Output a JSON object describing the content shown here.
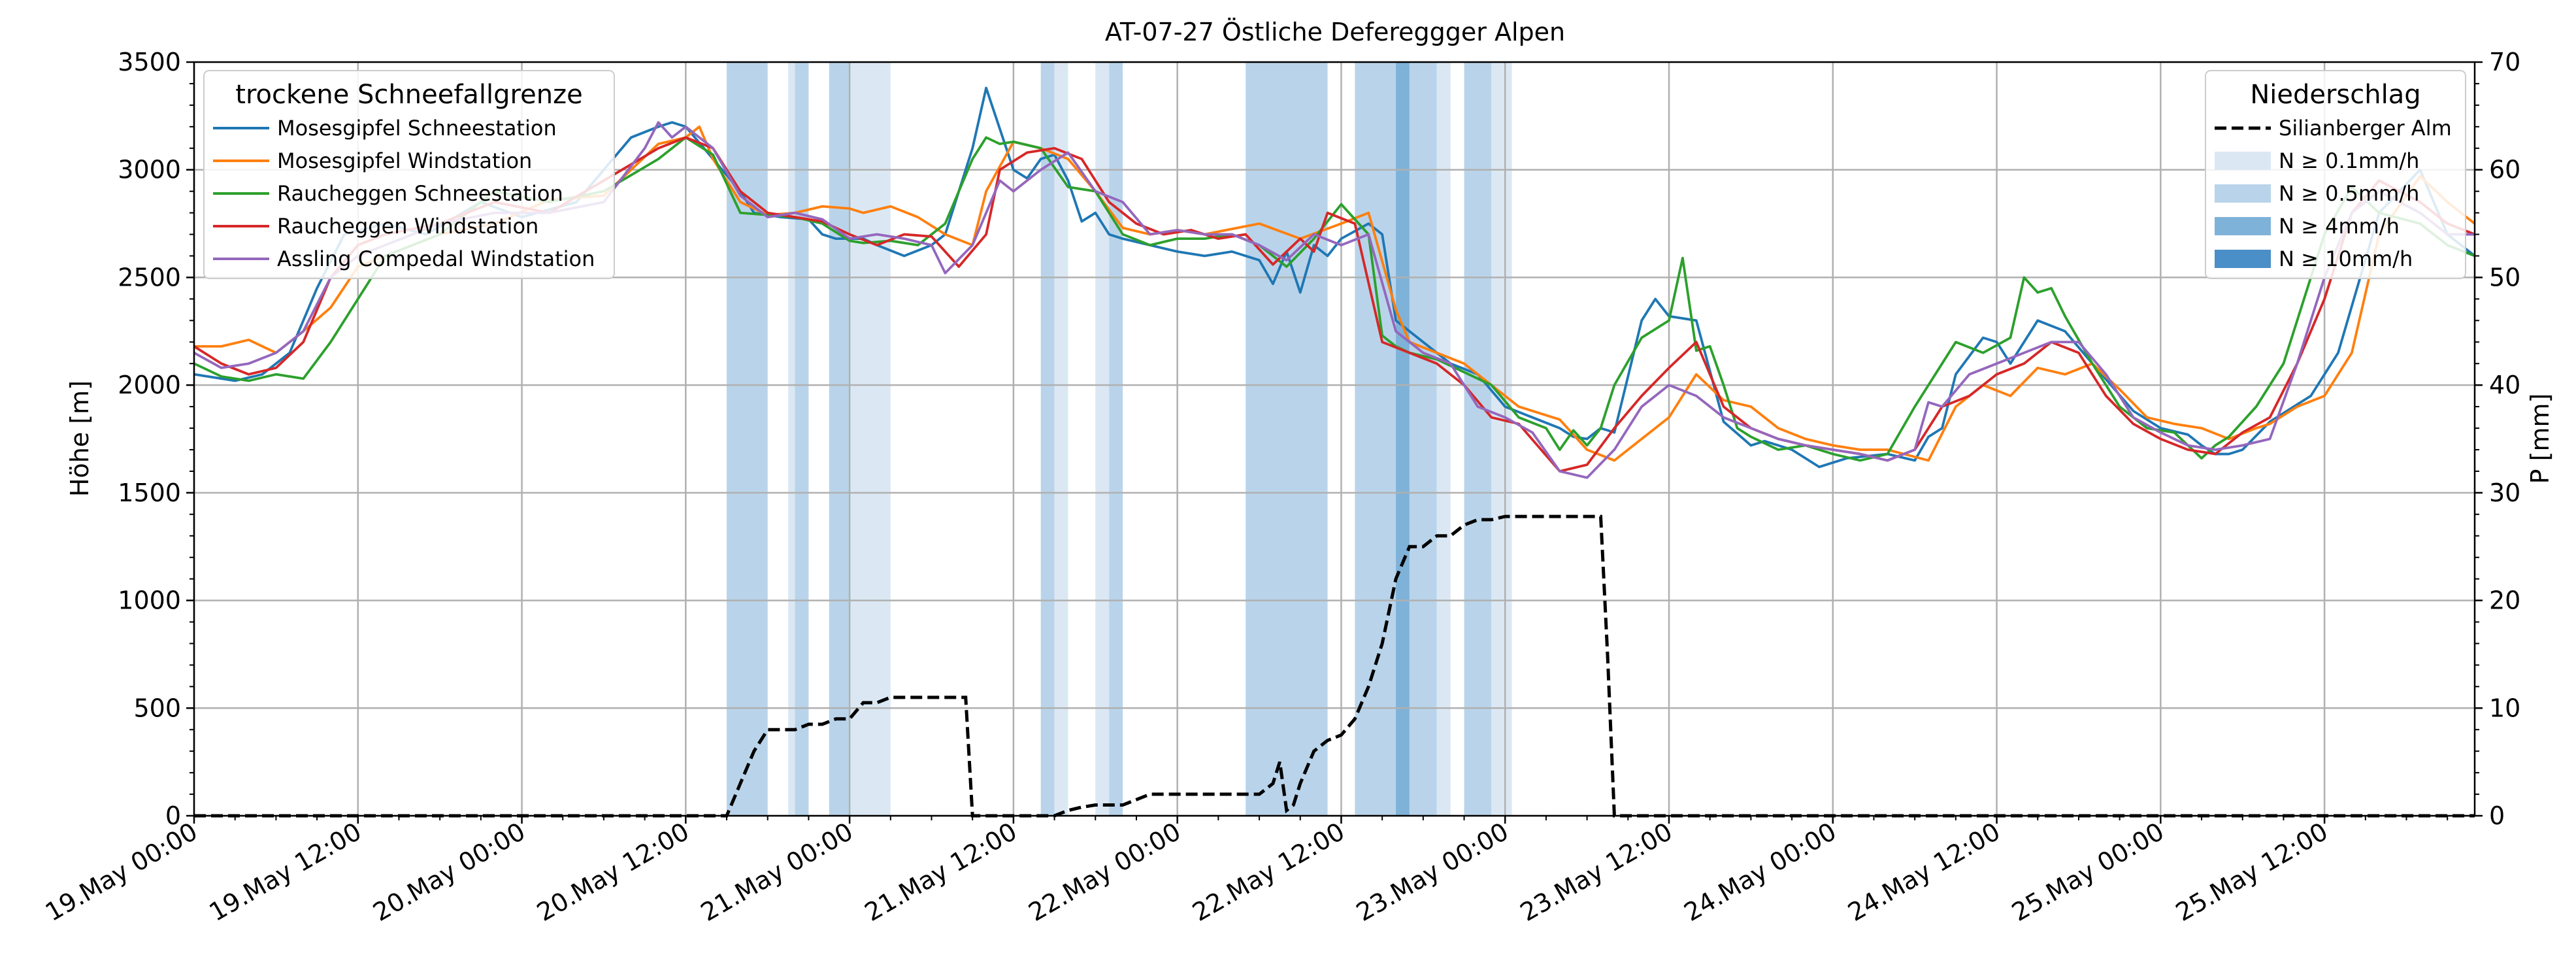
{
  "chart_data": {
    "type": "line",
    "title": "AT-07-27 Östliche Defereggger Alpen",
    "xlabel": "",
    "ylabel_left": "Höhe [m]",
    "ylabel_right": "P [mm]",
    "xlim_hours": [
      0,
      167
    ],
    "ylim_left": [
      0,
      3500
    ],
    "ylim_right": [
      0,
      70
    ],
    "grid": true,
    "y_ticks_left": [
      0,
      500,
      1000,
      1500,
      2000,
      2500,
      3000,
      3500
    ],
    "y_ticks_left_labels": [
      "0",
      "500",
      "1000",
      "1500",
      "2000",
      "2500",
      "3000",
      "3500"
    ],
    "y_ticks_right": [
      0,
      10,
      20,
      30,
      40,
      50,
      60,
      70
    ],
    "y_ticks_right_labels": [
      "0",
      "10",
      "20",
      "30",
      "40",
      "50",
      "60",
      "70"
    ],
    "x_ticks_hours": [
      0,
      12,
      24,
      36,
      48,
      60,
      72,
      84,
      96,
      108,
      120,
      132,
      144,
      156
    ],
    "x_tick_labels": [
      "19.May 00:00",
      "19.May 12:00",
      "20.May 00:00",
      "20.May 12:00",
      "21.May 00:00",
      "21.May 12:00",
      "22.May 00:00",
      "22.May 12:00",
      "23.May 00:00",
      "23.May 12:00",
      "24.May 00:00",
      "24.May 12:00",
      "25.May 00:00",
      "25.May 12:00"
    ],
    "legend_snow": {
      "title": "trockene Schneefallgrenze",
      "placement": "top-left"
    },
    "legend_precip": {
      "title": "Niederschlag",
      "placement": "top-right",
      "line_label": "Silianberger Alm",
      "levels": [
        {
          "label": "N ≥ 0.1mm/h",
          "color": "#dbe8f4"
        },
        {
          "label": "N ≥ 0.5mm/h",
          "color": "#b9d4ea"
        },
        {
          "label": "N ≥ 4mm/h",
          "color": "#7fb2d8"
        },
        {
          "label": "N ≥ 10mm/h",
          "color": "#4a8fc7"
        }
      ]
    },
    "precip_bands": [
      {
        "start": 39,
        "end": 42,
        "level": 1
      },
      {
        "start": 43.5,
        "end": 44,
        "level": 0
      },
      {
        "start": 44,
        "end": 45,
        "level": 1
      },
      {
        "start": 46.5,
        "end": 48,
        "level": 1
      },
      {
        "start": 48,
        "end": 51,
        "level": 0
      },
      {
        "start": 62,
        "end": 63,
        "level": 1
      },
      {
        "start": 63,
        "end": 64,
        "level": 0
      },
      {
        "start": 66,
        "end": 67,
        "level": 0
      },
      {
        "start": 67,
        "end": 68,
        "level": 1
      },
      {
        "start": 77,
        "end": 83,
        "level": 1
      },
      {
        "start": 85,
        "end": 88,
        "level": 1
      },
      {
        "start": 88,
        "end": 89,
        "level": 2
      },
      {
        "start": 89,
        "end": 91,
        "level": 1
      },
      {
        "start": 91,
        "end": 92,
        "level": 0
      },
      {
        "start": 93,
        "end": 95,
        "level": 1
      },
      {
        "start": 95,
        "end": 96.5,
        "level": 0
      }
    ],
    "series": [
      {
        "name": "Mosesgipfel Schneestation",
        "color": "#1f77b4",
        "x": [
          0,
          3,
          5,
          7,
          9,
          11,
          14,
          17,
          21,
          24,
          28,
          32,
          34,
          35,
          36,
          38,
          40,
          41,
          43,
          45,
          46,
          47,
          49,
          50,
          52,
          54,
          55,
          56,
          57,
          58,
          60,
          61,
          62,
          63,
          64,
          65,
          66,
          67,
          68,
          70,
          72,
          74,
          76,
          78,
          79,
          80,
          81,
          82,
          83,
          84,
          86,
          87,
          88,
          89,
          92,
          94,
          96,
          98,
          100,
          101,
          102,
          103,
          104,
          106,
          107,
          108,
          110,
          112,
          114,
          115,
          117,
          119,
          121,
          124,
          126,
          127,
          128,
          129,
          131,
          132,
          133,
          135,
          137,
          139,
          142,
          144,
          146,
          147,
          148,
          149,
          150,
          152,
          155,
          157,
          160,
          163,
          165,
          167
        ],
        "values": [
          2050,
          2020,
          2050,
          2150,
          2450,
          2700,
          2750,
          2700,
          2850,
          2780,
          2850,
          3150,
          3200,
          3220,
          3200,
          3050,
          2900,
          2800,
          2780,
          2770,
          2700,
          2680,
          2680,
          2650,
          2600,
          2650,
          2700,
          2900,
          3100,
          3380,
          3000,
          2960,
          3050,
          3070,
          2950,
          2760,
          2800,
          2700,
          2680,
          2650,
          2620,
          2600,
          2620,
          2580,
          2470,
          2620,
          2430,
          2650,
          2600,
          2680,
          2750,
          2700,
          2300,
          2250,
          2100,
          2050,
          1900,
          1850,
          1800,
          1760,
          1750,
          1800,
          1780,
          2300,
          2400,
          2320,
          2300,
          1830,
          1720,
          1740,
          1700,
          1620,
          1660,
          1680,
          1650,
          1760,
          1800,
          2050,
          2220,
          2200,
          2100,
          2300,
          2250,
          2100,
          1880,
          1800,
          1770,
          1720,
          1680,
          1680,
          1700,
          1830,
          1950,
          2150,
          2800,
          3000,
          2700,
          2600
        ]
      },
      {
        "name": "Mosesgipfel Windstation",
        "color": "#ff7f0e",
        "x": [
          0,
          2,
          4,
          6,
          8,
          10,
          12,
          14,
          18,
          22,
          26,
          30,
          34,
          36,
          37,
          38,
          40,
          42,
          44,
          46,
          48,
          49,
          51,
          53,
          55,
          57,
          58,
          60,
          62,
          64,
          66,
          68,
          70,
          72,
          74,
          78,
          81,
          84,
          86,
          88,
          89,
          91,
          93,
          95,
          97,
          100,
          102,
          104,
          106,
          108,
          110,
          112,
          114,
          116,
          118,
          120,
          122,
          124,
          127,
          129,
          131,
          133,
          135,
          137,
          139,
          141,
          143,
          145,
          147,
          149,
          151,
          152,
          154,
          156,
          158,
          160,
          163,
          165,
          167
        ],
        "values": [
          2180,
          2180,
          2210,
          2150,
          2250,
          2360,
          2550,
          2600,
          2700,
          2750,
          2860,
          2880,
          3120,
          3150,
          3200,
          3050,
          2850,
          2790,
          2800,
          2830,
          2820,
          2800,
          2830,
          2780,
          2700,
          2650,
          2900,
          3130,
          3100,
          3050,
          2900,
          2730,
          2700,
          2720,
          2700,
          2750,
          2680,
          2750,
          2800,
          2350,
          2200,
          2150,
          2100,
          2000,
          1900,
          1840,
          1700,
          1650,
          1750,
          1850,
          2050,
          1930,
          1900,
          1800,
          1750,
          1720,
          1700,
          1700,
          1650,
          1900,
          2000,
          1950,
          2080,
          2050,
          2100,
          1980,
          1850,
          1820,
          1800,
          1750,
          1800,
          1820,
          1900,
          1950,
          2150,
          2700,
          2970,
          2850,
          2750
        ]
      },
      {
        "name": "Raucheggen Schneestation",
        "color": "#2ca02c",
        "x": [
          0,
          2,
          4,
          6,
          8,
          10,
          12,
          14,
          18,
          22,
          26,
          30,
          34,
          36,
          38,
          40,
          42,
          44,
          46,
          48,
          49,
          51,
          53,
          55,
          57,
          58,
          59,
          60,
          62,
          64,
          66,
          68,
          70,
          72,
          74,
          76,
          78,
          80,
          82,
          84,
          86,
          87,
          88,
          89,
          91,
          93,
          95,
          97,
          99,
          100,
          101,
          102,
          103,
          104,
          106,
          108,
          109,
          110,
          111,
          112,
          113,
          114,
          116,
          118,
          120,
          122,
          124,
          126,
          128,
          129,
          131,
          133,
          134,
          135,
          136,
          137,
          139,
          141,
          143,
          145,
          146,
          147,
          148,
          149,
          151,
          153,
          155,
          156,
          158,
          160,
          163,
          165,
          167
        ],
        "values": [
          2100,
          2040,
          2020,
          2050,
          2030,
          2200,
          2400,
          2600,
          2700,
          2900,
          2850,
          2900,
          3050,
          3150,
          3070,
          2800,
          2790,
          2780,
          2750,
          2670,
          2660,
          2670,
          2650,
          2750,
          3050,
          3150,
          3120,
          3130,
          3100,
          2920,
          2900,
          2700,
          2650,
          2680,
          2680,
          2700,
          2650,
          2550,
          2680,
          2840,
          2700,
          2230,
          2180,
          2150,
          2120,
          2060,
          2000,
          1850,
          1800,
          1700,
          1790,
          1720,
          1800,
          2000,
          2220,
          2300,
          2590,
          2160,
          2180,
          2000,
          1800,
          1760,
          1700,
          1720,
          1680,
          1650,
          1680,
          1900,
          2100,
          2200,
          2150,
          2220,
          2500,
          2430,
          2450,
          2320,
          2100,
          1900,
          1800,
          1780,
          1720,
          1660,
          1720,
          1760,
          1900,
          2100,
          2500,
          2700,
          2920,
          2800,
          2750,
          2650,
          2600
        ]
      },
      {
        "name": "Raucheggen Windstation",
        "color": "#d62728",
        "x": [
          0,
          2,
          4,
          6,
          8,
          10,
          12,
          14,
          18,
          22,
          26,
          30,
          34,
          36,
          38,
          40,
          42,
          44,
          46,
          48,
          50,
          52,
          54,
          56,
          58,
          59,
          61,
          63,
          65,
          67,
          69,
          71,
          73,
          75,
          77,
          79,
          81,
          82,
          83,
          85,
          87,
          89,
          91,
          93,
          95,
          97,
          100,
          102,
          104,
          106,
          108,
          110,
          112,
          114,
          116,
          118,
          120,
          122,
          124,
          126,
          127,
          128,
          130,
          132,
          134,
          136,
          138,
          140,
          142,
          144,
          146,
          148,
          150,
          152,
          154,
          156,
          158,
          160,
          163,
          165,
          167
        ],
        "values": [
          2180,
          2100,
          2050,
          2080,
          2200,
          2500,
          2650,
          2700,
          2750,
          2850,
          2800,
          2950,
          3100,
          3150,
          3100,
          2900,
          2800,
          2780,
          2760,
          2700,
          2650,
          2700,
          2690,
          2550,
          2700,
          3000,
          3080,
          3100,
          3050,
          2850,
          2750,
          2700,
          2720,
          2680,
          2700,
          2560,
          2680,
          2620,
          2800,
          2750,
          2200,
          2150,
          2100,
          2000,
          1850,
          1820,
          1600,
          1630,
          1800,
          1950,
          2080,
          2200,
          1900,
          1800,
          1750,
          1720,
          1700,
          1680,
          1650,
          1700,
          1800,
          1900,
          1950,
          2050,
          2100,
          2200,
          2150,
          1950,
          1820,
          1750,
          1700,
          1680,
          1780,
          1850,
          2100,
          2400,
          2800,
          2950,
          2850,
          2750,
          2700
        ]
      },
      {
        "name": "Assling Compedal Windstation",
        "color": "#9467bd",
        "x": [
          0,
          2,
          4,
          6,
          8,
          10,
          12,
          14,
          18,
          22,
          26,
          30,
          33,
          34,
          35,
          36,
          38,
          40,
          42,
          44,
          46,
          48,
          50,
          52,
          54,
          55,
          57,
          59,
          60,
          62,
          64,
          66,
          68,
          70,
          72,
          74,
          76,
          78,
          80,
          82,
          84,
          86,
          88,
          90,
          92,
          94,
          96,
          98,
          100,
          102,
          104,
          106,
          108,
          110,
          112,
          114,
          116,
          118,
          120,
          122,
          124,
          126,
          127,
          128,
          130,
          132,
          134,
          136,
          138,
          140,
          142,
          144,
          146,
          148,
          150,
          152,
          154,
          156,
          158,
          160,
          163,
          165,
          167
        ],
        "values": [
          2150,
          2080,
          2100,
          2150,
          2250,
          2500,
          2600,
          2650,
          2750,
          2800,
          2800,
          2850,
          3100,
          3220,
          3150,
          3200,
          3100,
          2880,
          2780,
          2800,
          2770,
          2680,
          2700,
          2680,
          2650,
          2520,
          2650,
          2950,
          2900,
          3000,
          3080,
          2900,
          2850,
          2700,
          2720,
          2700,
          2700,
          2650,
          2580,
          2700,
          2650,
          2700,
          2250,
          2150,
          2100,
          1900,
          1850,
          1780,
          1600,
          1570,
          1700,
          1900,
          2000,
          1950,
          1850,
          1800,
          1750,
          1720,
          1700,
          1680,
          1650,
          1700,
          1920,
          1900,
          2050,
          2100,
          2150,
          2200,
          2200,
          2050,
          1850,
          1780,
          1720,
          1700,
          1720,
          1750,
          2100,
          2500,
          2800,
          2900,
          2800,
          2700,
          2700
        ]
      }
    ],
    "precip_line": {
      "name": "Silianberger Alm",
      "color": "#000000",
      "x": [
        0,
        28,
        38,
        39,
        40,
        41,
        42,
        43,
        44,
        45,
        46,
        47,
        48,
        49,
        50,
        51,
        52,
        53,
        54,
        55,
        56,
        56.5,
        57,
        60,
        61,
        62,
        63,
        64,
        65,
        66,
        67,
        68,
        69,
        70,
        71,
        72,
        73,
        74,
        75,
        76,
        77,
        78,
        78.5,
        79,
        79.5,
        80,
        80.5,
        81,
        82,
        83,
        84,
        85,
        86,
        87,
        88,
        89,
        90,
        91,
        92,
        93,
        94,
        95,
        96,
        97,
        98,
        99,
        100,
        101,
        102,
        103,
        103.5,
        104,
        110,
        120,
        130,
        140,
        150,
        160,
        167
      ],
      "values": [
        0,
        0,
        0,
        0,
        3,
        6,
        8,
        8,
        8,
        8.5,
        8.5,
        9,
        9,
        10.5,
        10.5,
        11,
        11,
        11,
        11,
        11,
        11,
        11,
        0,
        0,
        0,
        0,
        0,
        0.5,
        0.8,
        1,
        1,
        1,
        1.5,
        2,
        2,
        2,
        2,
        2,
        2,
        2,
        2,
        2,
        2.5,
        3,
        5,
        0.5,
        1,
        3,
        6,
        7,
        7.5,
        9,
        12,
        16,
        22,
        25,
        25,
        26,
        26,
        27,
        27.5,
        27.5,
        27.8,
        27.8,
        27.8,
        27.8,
        27.8,
        27.8,
        27.8,
        27.8,
        15,
        0,
        0,
        0,
        0,
        0,
        0,
        0,
        0
      ]
    }
  }
}
